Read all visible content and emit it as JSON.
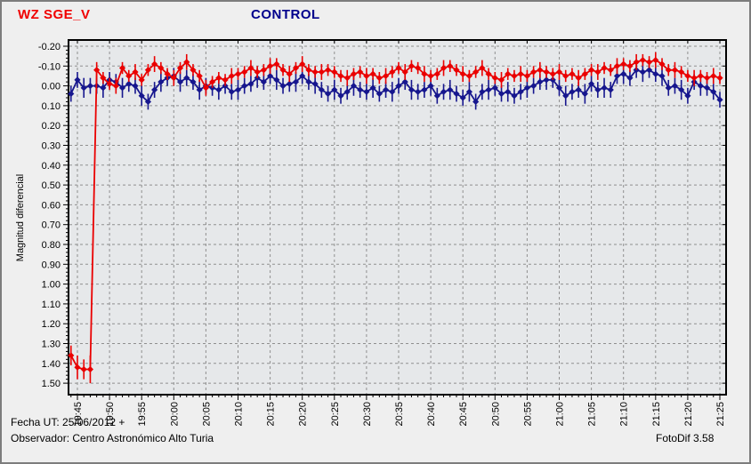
{
  "header": {
    "target_label": "WZ SGE_V",
    "control_label": "CONTROL",
    "target_color": "#f00000",
    "control_color": "#00008c"
  },
  "footer": {
    "date_label": "Fecha UT: 25/06/2012 +",
    "observer_label": "Observador: Centro Astronómico Alto Turia",
    "software_label": "FotoDif 3.58"
  },
  "chart_data": {
    "type": "scatter",
    "title": "CONTROL",
    "ylabel": "Magnitud diferencial",
    "y_axis_inverted": true,
    "ylim": [
      -0.2,
      1.5
    ],
    "y_major_step": 0.1,
    "y_minor_step": 0.02,
    "ytick_labels": [
      "-0.20",
      "-0.10",
      "0.00",
      "0.10",
      "0.20",
      "0.30",
      "0.40",
      "0.50",
      "0.60",
      "0.70",
      "0.80",
      "0.90",
      "1.00",
      "1.10",
      "1.20",
      "1.30",
      "1.40",
      "1.50"
    ],
    "xtick_labels": [
      "19:45",
      "19:50",
      "19:55",
      "20:00",
      "20:05",
      "20:10",
      "20:15",
      "20:20",
      "20:25",
      "20:30",
      "20:35",
      "20:40",
      "20:45",
      "20:50",
      "20:55",
      "21:00",
      "21:05",
      "21:10",
      "21:15",
      "21:20",
      "21:25"
    ],
    "x_major_step_minutes": 5,
    "x_minor_step_minutes": 1,
    "x_origin_label": "19:44",
    "grid": "dashed",
    "grid_color": "#8f8f8f",
    "plot_bg": "#e6e8ea",
    "series": [
      {
        "name": "CONTROL",
        "color": "#16168e",
        "points_format": [
          "minutes_after_19:44",
          "diff_magnitude",
          "error"
        ],
        "points": [
          [
            0,
            0.04,
            0.04
          ],
          [
            1,
            -0.03,
            0.04
          ],
          [
            2,
            0.01,
            0.05
          ],
          [
            3,
            0.0,
            0.04
          ],
          [
            4,
            0.0,
            0.04
          ],
          [
            5,
            0.01,
            0.05
          ],
          [
            6,
            -0.03,
            0.04
          ],
          [
            7,
            -0.02,
            0.04
          ],
          [
            8,
            0.01,
            0.05
          ],
          [
            9,
            -0.01,
            0.04
          ],
          [
            10,
            0.0,
            0.04
          ],
          [
            11,
            0.05,
            0.05
          ],
          [
            12,
            0.08,
            0.04
          ],
          [
            13,
            0.02,
            0.04
          ],
          [
            14,
            -0.02,
            0.05
          ],
          [
            15,
            -0.04,
            0.04
          ],
          [
            16,
            -0.05,
            0.04
          ],
          [
            17,
            -0.02,
            0.05
          ],
          [
            18,
            -0.04,
            0.04
          ],
          [
            19,
            -0.02,
            0.04
          ],
          [
            20,
            0.02,
            0.05
          ],
          [
            21,
            0.0,
            0.04
          ],
          [
            22,
            0.01,
            0.04
          ],
          [
            23,
            0.02,
            0.05
          ],
          [
            24,
            0.0,
            0.04
          ],
          [
            25,
            0.03,
            0.04
          ],
          [
            26,
            0.02,
            0.05
          ],
          [
            27,
            0.0,
            0.04
          ],
          [
            28,
            -0.01,
            0.04
          ],
          [
            29,
            -0.04,
            0.05
          ],
          [
            30,
            -0.02,
            0.04
          ],
          [
            31,
            -0.05,
            0.04
          ],
          [
            32,
            -0.03,
            0.05
          ],
          [
            33,
            0.0,
            0.04
          ],
          [
            34,
            -0.01,
            0.04
          ],
          [
            35,
            -0.02,
            0.05
          ],
          [
            36,
            -0.05,
            0.04
          ],
          [
            37,
            -0.02,
            0.04
          ],
          [
            38,
            -0.01,
            0.05
          ],
          [
            39,
            0.02,
            0.04
          ],
          [
            40,
            0.04,
            0.04
          ],
          [
            41,
            0.02,
            0.05
          ],
          [
            42,
            0.05,
            0.04
          ],
          [
            43,
            0.03,
            0.04
          ],
          [
            44,
            0.0,
            0.05
          ],
          [
            45,
            0.02,
            0.04
          ],
          [
            46,
            0.03,
            0.04
          ],
          [
            47,
            0.01,
            0.05
          ],
          [
            48,
            0.04,
            0.04
          ],
          [
            49,
            0.02,
            0.04
          ],
          [
            50,
            0.03,
            0.05
          ],
          [
            51,
            0.0,
            0.04
          ],
          [
            52,
            -0.02,
            0.04
          ],
          [
            53,
            0.02,
            0.05
          ],
          [
            54,
            0.03,
            0.04
          ],
          [
            55,
            0.02,
            0.04
          ],
          [
            56,
            0.0,
            0.05
          ],
          [
            57,
            0.05,
            0.04
          ],
          [
            58,
            0.03,
            0.04
          ],
          [
            59,
            0.02,
            0.05
          ],
          [
            60,
            0.04,
            0.04
          ],
          [
            61,
            0.06,
            0.04
          ],
          [
            62,
            0.03,
            0.05
          ],
          [
            63,
            0.08,
            0.04
          ],
          [
            64,
            0.03,
            0.04
          ],
          [
            65,
            0.02,
            0.05
          ],
          [
            66,
            0.01,
            0.04
          ],
          [
            67,
            0.04,
            0.04
          ],
          [
            68,
            0.03,
            0.05
          ],
          [
            69,
            0.05,
            0.04
          ],
          [
            70,
            0.03,
            0.04
          ],
          [
            71,
            0.01,
            0.05
          ],
          [
            72,
            0.0,
            0.04
          ],
          [
            73,
            -0.02,
            0.04
          ],
          [
            74,
            -0.03,
            0.05
          ],
          [
            75,
            -0.03,
            0.04
          ],
          [
            76,
            0.01,
            0.04
          ],
          [
            77,
            0.05,
            0.05
          ],
          [
            78,
            0.03,
            0.04
          ],
          [
            79,
            0.02,
            0.04
          ],
          [
            80,
            0.04,
            0.05
          ],
          [
            81,
            -0.01,
            0.04
          ],
          [
            82,
            0.02,
            0.04
          ],
          [
            83,
            0.01,
            0.05
          ],
          [
            84,
            0.02,
            0.04
          ],
          [
            85,
            -0.05,
            0.04
          ],
          [
            86,
            -0.06,
            0.05
          ],
          [
            87,
            -0.04,
            0.04
          ],
          [
            88,
            -0.08,
            0.04
          ],
          [
            89,
            -0.07,
            0.05
          ],
          [
            90,
            -0.08,
            0.04
          ],
          [
            91,
            -0.06,
            0.04
          ],
          [
            92,
            -0.05,
            0.05
          ],
          [
            93,
            0.01,
            0.04
          ],
          [
            94,
            0.0,
            0.04
          ],
          [
            95,
            0.02,
            0.05
          ],
          [
            96,
            0.05,
            0.04
          ],
          [
            97,
            -0.02,
            0.04
          ],
          [
            98,
            0.0,
            0.05
          ],
          [
            99,
            0.01,
            0.04
          ],
          [
            100,
            0.03,
            0.04
          ],
          [
            101,
            0.07,
            0.04
          ]
        ]
      },
      {
        "name": "WZ SGE_V",
        "color": "#ea0000",
        "points_format": [
          "minutes_after_19:44",
          "diff_magnitude",
          "error"
        ],
        "points": [
          [
            0,
            1.36,
            0.05
          ],
          [
            1,
            1.42,
            0.06
          ],
          [
            2,
            1.43,
            0.05
          ],
          [
            3,
            1.43,
            0.07
          ],
          [
            4,
            -0.08,
            0.04
          ],
          [
            5,
            -0.04,
            0.03
          ],
          [
            6,
            -0.01,
            0.03
          ],
          [
            7,
            0.0,
            0.04
          ],
          [
            8,
            -0.09,
            0.03
          ],
          [
            9,
            -0.05,
            0.03
          ],
          [
            10,
            -0.07,
            0.04
          ],
          [
            11,
            -0.03,
            0.03
          ],
          [
            12,
            -0.08,
            0.03
          ],
          [
            13,
            -0.11,
            0.04
          ],
          [
            14,
            -0.09,
            0.03
          ],
          [
            15,
            -0.06,
            0.03
          ],
          [
            16,
            -0.04,
            0.04
          ],
          [
            17,
            -0.09,
            0.03
          ],
          [
            18,
            -0.12,
            0.04
          ],
          [
            19,
            -0.08,
            0.03
          ],
          [
            20,
            -0.05,
            0.03
          ],
          [
            21,
            0.01,
            0.04
          ],
          [
            22,
            -0.02,
            0.03
          ],
          [
            23,
            -0.04,
            0.03
          ],
          [
            24,
            -0.03,
            0.03
          ],
          [
            25,
            -0.05,
            0.04
          ],
          [
            26,
            -0.06,
            0.03
          ],
          [
            27,
            -0.07,
            0.03
          ],
          [
            28,
            -0.09,
            0.04
          ],
          [
            29,
            -0.07,
            0.03
          ],
          [
            30,
            -0.08,
            0.03
          ],
          [
            31,
            -0.1,
            0.04
          ],
          [
            32,
            -0.11,
            0.03
          ],
          [
            33,
            -0.08,
            0.03
          ],
          [
            34,
            -0.06,
            0.04
          ],
          [
            35,
            -0.09,
            0.03
          ],
          [
            36,
            -0.11,
            0.04
          ],
          [
            37,
            -0.08,
            0.03
          ],
          [
            38,
            -0.07,
            0.03
          ],
          [
            39,
            -0.07,
            0.04
          ],
          [
            40,
            -0.08,
            0.03
          ],
          [
            41,
            -0.07,
            0.03
          ],
          [
            42,
            -0.05,
            0.03
          ],
          [
            43,
            -0.04,
            0.04
          ],
          [
            44,
            -0.06,
            0.03
          ],
          [
            45,
            -0.07,
            0.03
          ],
          [
            46,
            -0.05,
            0.04
          ],
          [
            47,
            -0.06,
            0.03
          ],
          [
            48,
            -0.04,
            0.03
          ],
          [
            49,
            -0.05,
            0.04
          ],
          [
            50,
            -0.07,
            0.03
          ],
          [
            51,
            -0.09,
            0.03
          ],
          [
            52,
            -0.07,
            0.04
          ],
          [
            53,
            -0.1,
            0.03
          ],
          [
            54,
            -0.09,
            0.03
          ],
          [
            55,
            -0.06,
            0.04
          ],
          [
            56,
            -0.05,
            0.03
          ],
          [
            57,
            -0.06,
            0.03
          ],
          [
            58,
            -0.09,
            0.04
          ],
          [
            59,
            -0.1,
            0.03
          ],
          [
            60,
            -0.08,
            0.03
          ],
          [
            61,
            -0.06,
            0.04
          ],
          [
            62,
            -0.05,
            0.03
          ],
          [
            63,
            -0.07,
            0.03
          ],
          [
            64,
            -0.09,
            0.04
          ],
          [
            65,
            -0.06,
            0.03
          ],
          [
            66,
            -0.04,
            0.03
          ],
          [
            67,
            -0.03,
            0.04
          ],
          [
            68,
            -0.06,
            0.03
          ],
          [
            69,
            -0.05,
            0.03
          ],
          [
            70,
            -0.06,
            0.04
          ],
          [
            71,
            -0.05,
            0.03
          ],
          [
            72,
            -0.07,
            0.03
          ],
          [
            73,
            -0.08,
            0.04
          ],
          [
            74,
            -0.07,
            0.03
          ],
          [
            75,
            -0.06,
            0.03
          ],
          [
            76,
            -0.07,
            0.04
          ],
          [
            77,
            -0.05,
            0.03
          ],
          [
            78,
            -0.06,
            0.03
          ],
          [
            79,
            -0.04,
            0.04
          ],
          [
            80,
            -0.06,
            0.03
          ],
          [
            81,
            -0.08,
            0.03
          ],
          [
            82,
            -0.07,
            0.04
          ],
          [
            83,
            -0.09,
            0.03
          ],
          [
            84,
            -0.08,
            0.03
          ],
          [
            85,
            -0.1,
            0.04
          ],
          [
            86,
            -0.11,
            0.03
          ],
          [
            87,
            -0.1,
            0.03
          ],
          [
            88,
            -0.12,
            0.04
          ],
          [
            89,
            -0.13,
            0.03
          ],
          [
            90,
            -0.12,
            0.03
          ],
          [
            91,
            -0.13,
            0.04
          ],
          [
            92,
            -0.11,
            0.03
          ],
          [
            93,
            -0.08,
            0.03
          ],
          [
            94,
            -0.08,
            0.04
          ],
          [
            95,
            -0.07,
            0.03
          ],
          [
            96,
            -0.05,
            0.03
          ],
          [
            97,
            -0.04,
            0.04
          ],
          [
            98,
            -0.05,
            0.03
          ],
          [
            99,
            -0.04,
            0.03
          ],
          [
            100,
            -0.05,
            0.04
          ],
          [
            101,
            -0.04,
            0.03
          ]
        ]
      }
    ]
  }
}
